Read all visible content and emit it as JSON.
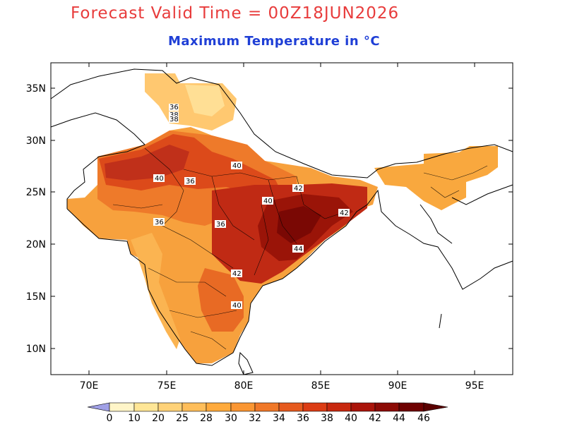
{
  "header": {
    "title": "Forecast Valid Time = 00Z18JUN2026",
    "subtitle": "Maximum Temperature in °C"
  },
  "map": {
    "lon_range": [
      67,
      97
    ],
    "lat_range": [
      7.5,
      37.5
    ],
    "x_ticks": [
      "70E",
      "75E",
      "80E",
      "85E",
      "90E",
      "95E"
    ],
    "y_ticks": [
      "35N",
      "30N",
      "25N",
      "20N",
      "15N",
      "10N"
    ],
    "contour_labels": [
      "40",
      "40",
      "42",
      "40",
      "42",
      "44",
      "42",
      "40",
      "36",
      "36",
      "36",
      "36",
      "38",
      "38"
    ]
  },
  "colorbar": {
    "levels": [
      "0",
      "10",
      "20",
      "25",
      "28",
      "30",
      "32",
      "34",
      "36",
      "38",
      "40",
      "42",
      "44",
      "46"
    ],
    "colors": [
      "#a0a0e6",
      "#fff5c8",
      "#ffe696",
      "#ffd278",
      "#ffbe5a",
      "#ffaa3c",
      "#fa9632",
      "#f07828",
      "#e65a1e",
      "#dc3c14",
      "#c8280f",
      "#aa140a",
      "#8c0a05",
      "#6e0000"
    ]
  }
}
